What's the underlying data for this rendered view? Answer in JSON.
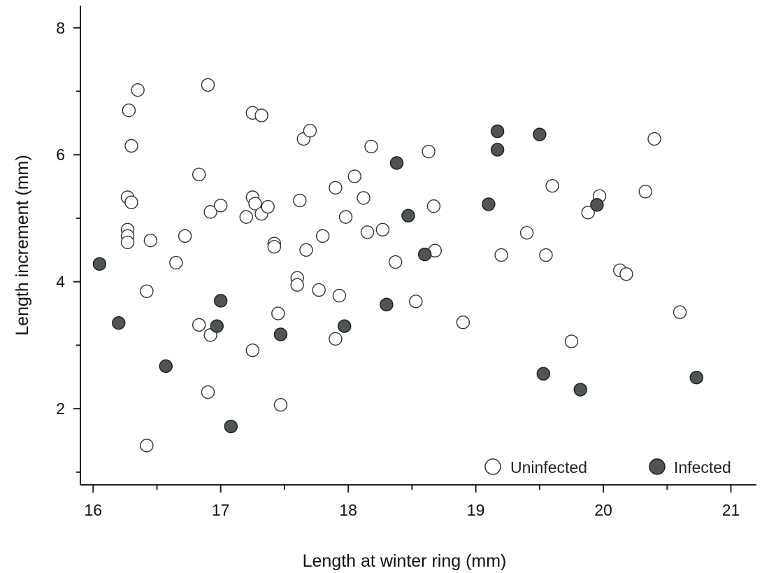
{
  "chart_data": {
    "type": "scatter",
    "title": "",
    "xlabel": "Length at winter ring (mm)",
    "ylabel": "Length increment (mm)",
    "xlim": [
      15.9,
      21.2
    ],
    "ylim": [
      0.8,
      8.35
    ],
    "x_major_ticks": [
      16,
      17,
      18,
      19,
      20,
      21
    ],
    "x_minor_ticks": [
      16.5,
      17.5,
      18.5,
      19.5,
      20.5
    ],
    "y_major_ticks": [
      2,
      4,
      6,
      8
    ],
    "y_minor_ticks": [
      1,
      3,
      5,
      7
    ],
    "grid": false,
    "legend_position": "bottom-right",
    "series": [
      {
        "name": "Uninfected",
        "color": "#ffffff",
        "edgecolor": "#333333",
        "points": [
          [
            16.28,
            6.7
          ],
          [
            16.35,
            7.02
          ],
          [
            16.3,
            6.14
          ],
          [
            16.27,
            5.33
          ],
          [
            16.3,
            5.25
          ],
          [
            16.27,
            4.82
          ],
          [
            16.27,
            4.72
          ],
          [
            16.27,
            4.62
          ],
          [
            16.45,
            4.65
          ],
          [
            16.42,
            3.85
          ],
          [
            16.42,
            1.42
          ],
          [
            16.65,
            4.3
          ],
          [
            16.72,
            4.72
          ],
          [
            16.83,
            5.69
          ],
          [
            16.83,
            3.32
          ],
          [
            16.9,
            7.1
          ],
          [
            16.92,
            5.1
          ],
          [
            17.0,
            5.2
          ],
          [
            16.92,
            3.16
          ],
          [
            16.9,
            2.26
          ],
          [
            17.25,
            6.66
          ],
          [
            17.32,
            6.62
          ],
          [
            17.2,
            5.02
          ],
          [
            17.25,
            5.33
          ],
          [
            17.27,
            5.23
          ],
          [
            17.32,
            5.07
          ],
          [
            17.37,
            5.18
          ],
          [
            17.42,
            4.6
          ],
          [
            17.42,
            4.55
          ],
          [
            17.25,
            2.92
          ],
          [
            17.45,
            3.5
          ],
          [
            17.47,
            2.06
          ],
          [
            17.65,
            6.25
          ],
          [
            17.7,
            6.38
          ],
          [
            17.62,
            5.28
          ],
          [
            17.67,
            4.5
          ],
          [
            17.6,
            4.06
          ],
          [
            17.6,
            3.95
          ],
          [
            17.8,
            4.72
          ],
          [
            17.77,
            3.87
          ],
          [
            17.9,
            5.48
          ],
          [
            18.05,
            5.66
          ],
          [
            17.98,
            5.02
          ],
          [
            17.93,
            3.78
          ],
          [
            17.9,
            3.1
          ],
          [
            18.18,
            6.13
          ],
          [
            18.12,
            5.32
          ],
          [
            18.15,
            4.78
          ],
          [
            18.27,
            4.82
          ],
          [
            18.37,
            4.31
          ],
          [
            18.53,
            3.69
          ],
          [
            18.63,
            6.05
          ],
          [
            18.67,
            5.19
          ],
          [
            18.68,
            4.49
          ],
          [
            18.9,
            3.36
          ],
          [
            19.2,
            4.42
          ],
          [
            19.4,
            4.77
          ],
          [
            19.55,
            4.42
          ],
          [
            19.6,
            5.51
          ],
          [
            19.75,
            3.06
          ],
          [
            19.88,
            5.09
          ],
          [
            19.97,
            5.35
          ],
          [
            20.13,
            4.18
          ],
          [
            20.18,
            4.12
          ],
          [
            20.33,
            5.42
          ],
          [
            20.4,
            6.25
          ],
          [
            20.6,
            3.52
          ]
        ]
      },
      {
        "name": "Infected",
        "color": "#4f5552",
        "edgecolor": "#1c1c1c",
        "points": [
          [
            16.05,
            4.28
          ],
          [
            16.2,
            3.35
          ],
          [
            16.57,
            2.67
          ],
          [
            16.97,
            3.3
          ],
          [
            17.0,
            3.7
          ],
          [
            17.08,
            1.72
          ],
          [
            17.47,
            3.17
          ],
          [
            17.97,
            3.3
          ],
          [
            18.3,
            3.64
          ],
          [
            18.38,
            5.87
          ],
          [
            18.47,
            5.04
          ],
          [
            18.6,
            4.43
          ],
          [
            19.1,
            5.22
          ],
          [
            19.17,
            6.37
          ],
          [
            19.17,
            6.08
          ],
          [
            19.5,
            6.32
          ],
          [
            19.53,
            2.55
          ],
          [
            19.82,
            2.3
          ],
          [
            19.95,
            5.21
          ],
          [
            20.73,
            2.49
          ]
        ]
      }
    ]
  }
}
